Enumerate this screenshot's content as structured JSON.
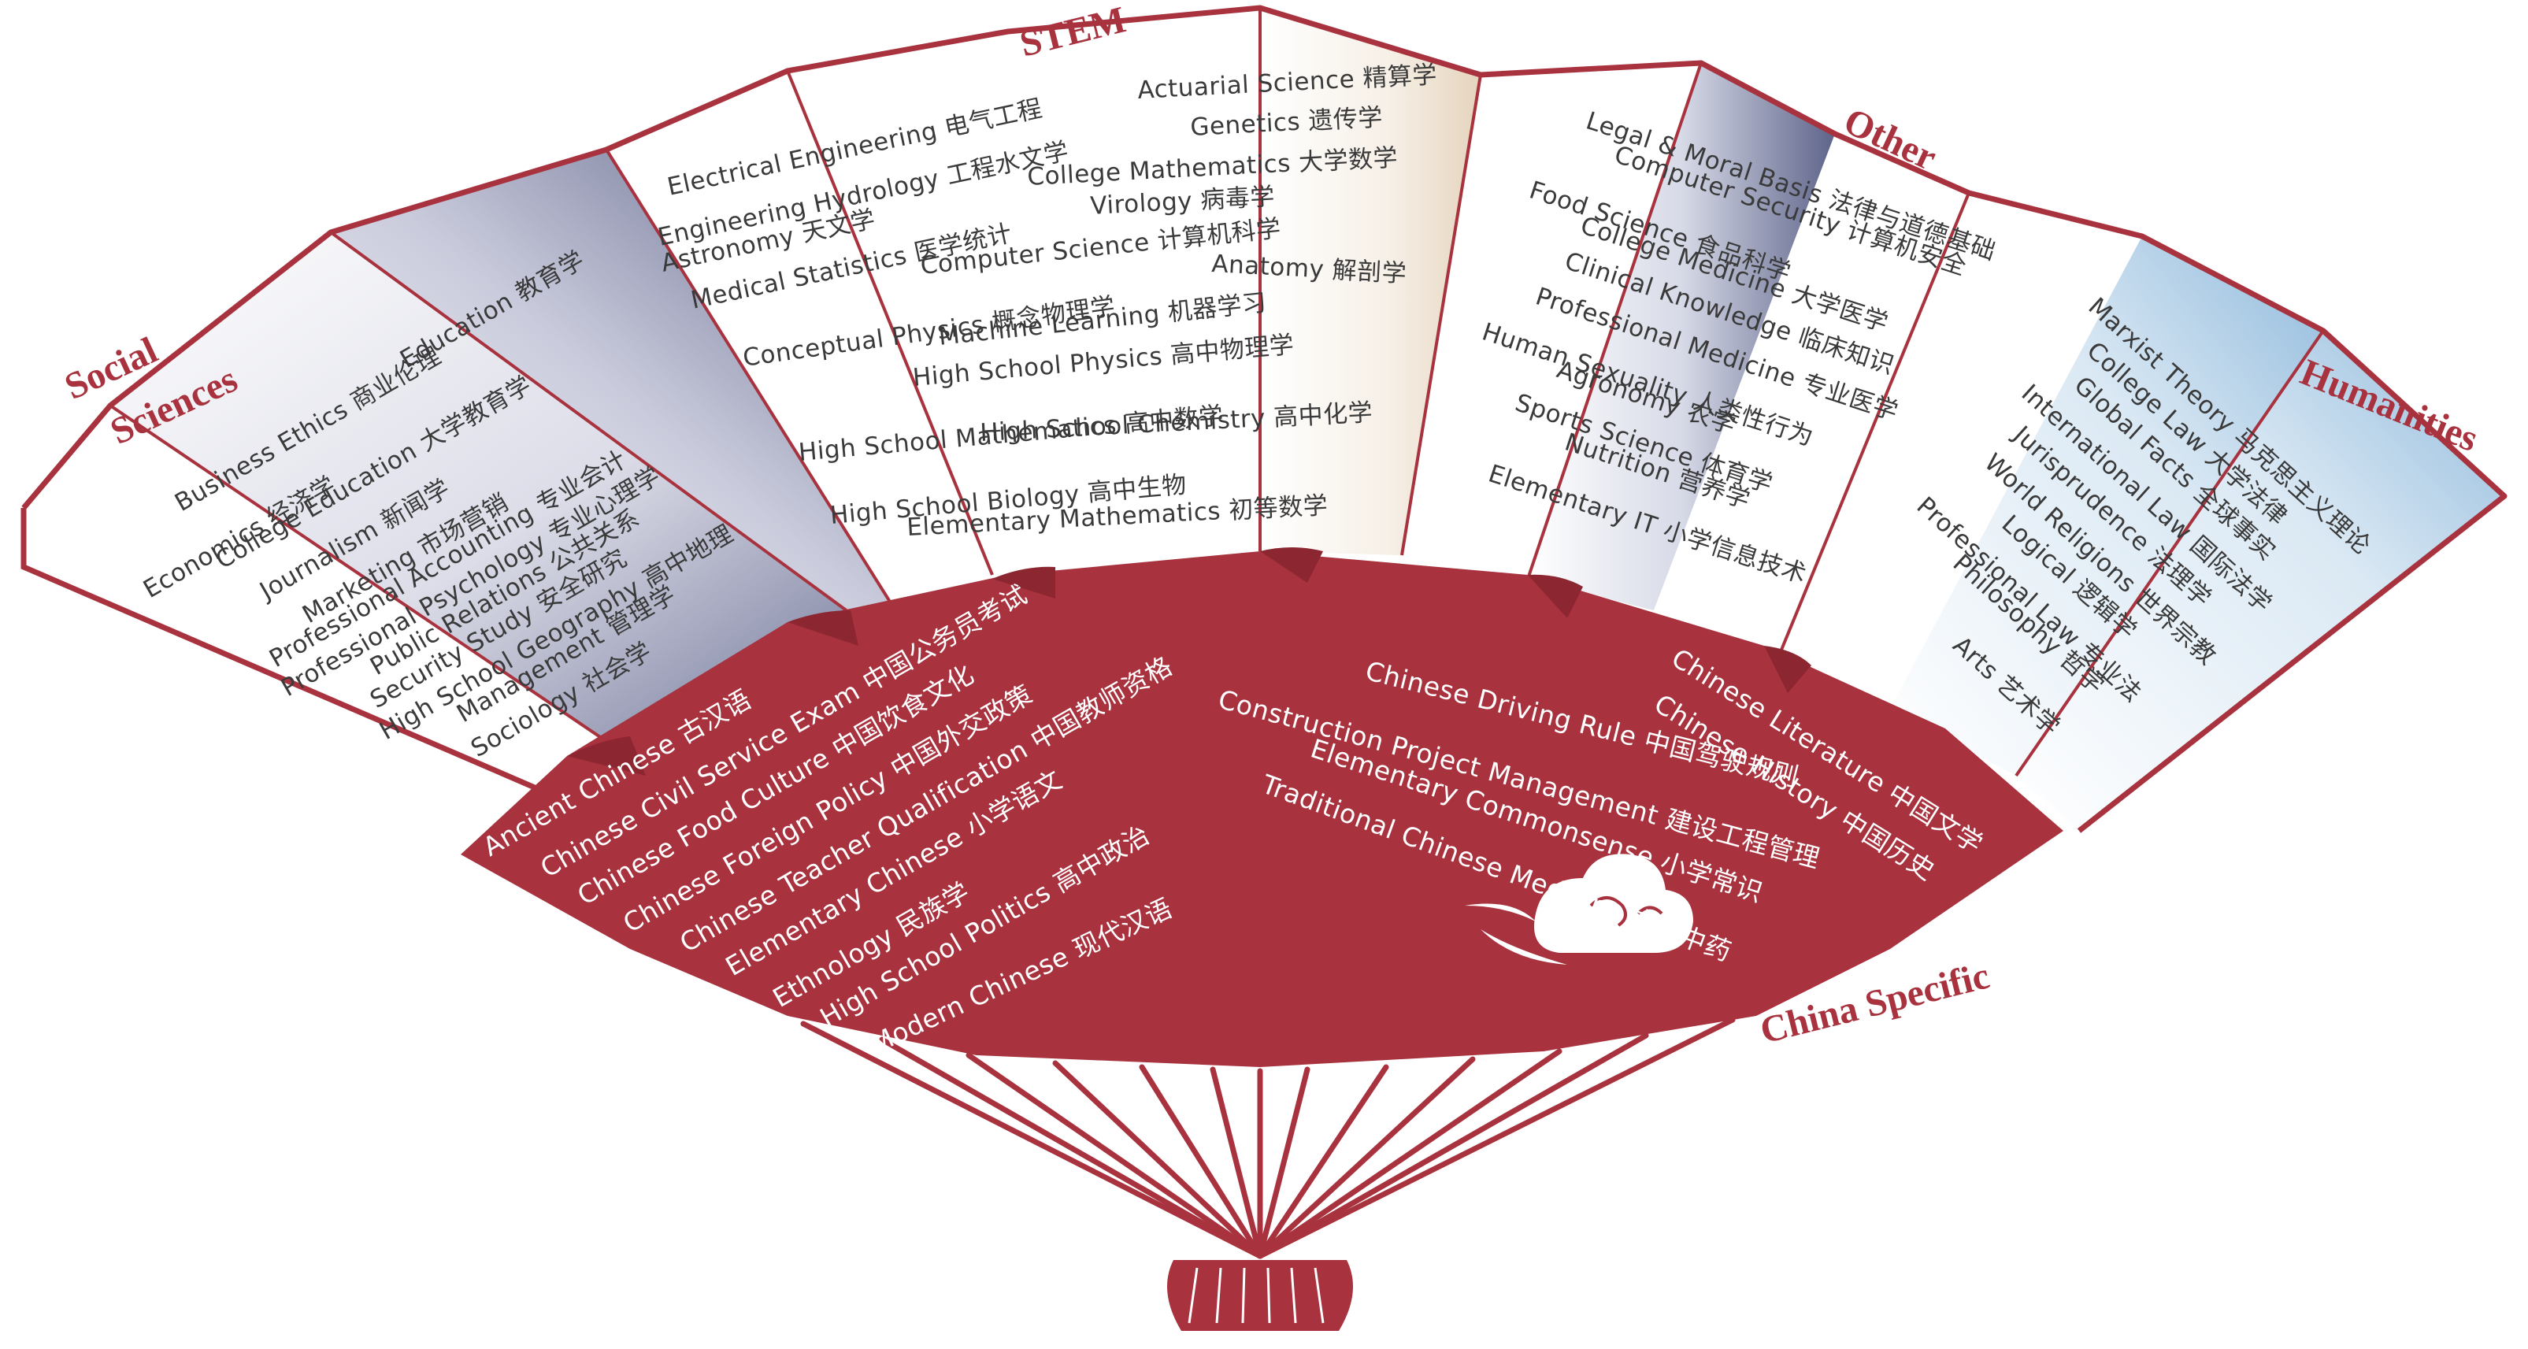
{
  "categories": {
    "stem": "STEM",
    "social": [
      "Social",
      "Sciences"
    ],
    "other": "Other",
    "humanities": "Humanities",
    "china": "China Specific"
  },
  "colors": {
    "fan_red": "#a8323e",
    "fan_red_dark": "#8c2631",
    "category_red": "#a8323e",
    "text_grey": "#3a3a3a"
  },
  "social_sciences": [
    "Business Ethics 商业伦理",
    "Economics 经济学",
    "College Education 大学教育学",
    "Education 教育学",
    "Journalism 新闻学",
    "Marketing 市场营销",
    "Professional Accounting 专业会计",
    "Professional Psychology 专业心理学",
    "Public Relations 公共关系",
    "Security Study 安全研究",
    "High School Geography 高中地理",
    "Management 管理学",
    "Sociology 社会学"
  ],
  "stem": [
    "Electrical Engineering 电气工程",
    "Engineering Hydrology 工程水文学",
    "Astronomy 天文学",
    "Medical Statistics 医学统计",
    "Actuarial Science 精算学",
    "Genetics 遗传学",
    "College Mathematics 大学数学",
    "Virology 病毒学",
    "Computer Science 计算机科学",
    "Anatomy 解剖学",
    "Conceptual Physics 概念物理学",
    "Machine Learning 机器学习",
    "High School Physics 高中物理学",
    "High School Mathematics 高中数学",
    "High School Chemistry 高中化学",
    "High School Biology 高中生物",
    "Elementary Mathematics 初等数学"
  ],
  "other": [
    "Legal & Moral Basis 法律与道德基础",
    "Computer Security 计算机安全",
    "Food Science 食品科学",
    "College Medicine 大学医学",
    "Clinical Knowledge 临床知识",
    "Professional Medicine 专业医学",
    "Human Sexuality 人类性行为",
    "Agronomy 农学",
    "Sports Science 体育学",
    "Nutrition 营养学",
    "Elementary IT 小学信息技术"
  ],
  "humanities": [
    "Marxist Theory 马克思主义理论",
    "College Law 大学法律",
    "Global Facts 全球事实",
    "International Law 国际法学",
    "Jurisprudence 法理学",
    "World Religions 世界宗教",
    "Logical 逻辑学",
    "Professional Law 专业法",
    "Philosophy 哲学",
    "Arts 艺术学"
  ],
  "china_specific": [
    "Ancient Chinese 古汉语",
    "Chinese Civil Service Exam 中国公务员考试",
    "Chinese Food Culture 中国饮食文化",
    "Chinese Foreign Policy 中国外交政策",
    "Chinese Teacher Qualification 中国教师资格",
    "Elementary Chinese 小学语文",
    "Ethnology 民族学",
    "High School Politics 高中政治",
    "Modern Chinese 现代汉语",
    "Chinese Driving Rule 中国驾驶规则",
    "Construction Project Management 建设工程管理",
    "Elementary Commonsense 小学常识",
    "Traditional Chinese Medicine 中医中药",
    "Chinese Literature 中国文学",
    "Chinese History 中国历史"
  ]
}
